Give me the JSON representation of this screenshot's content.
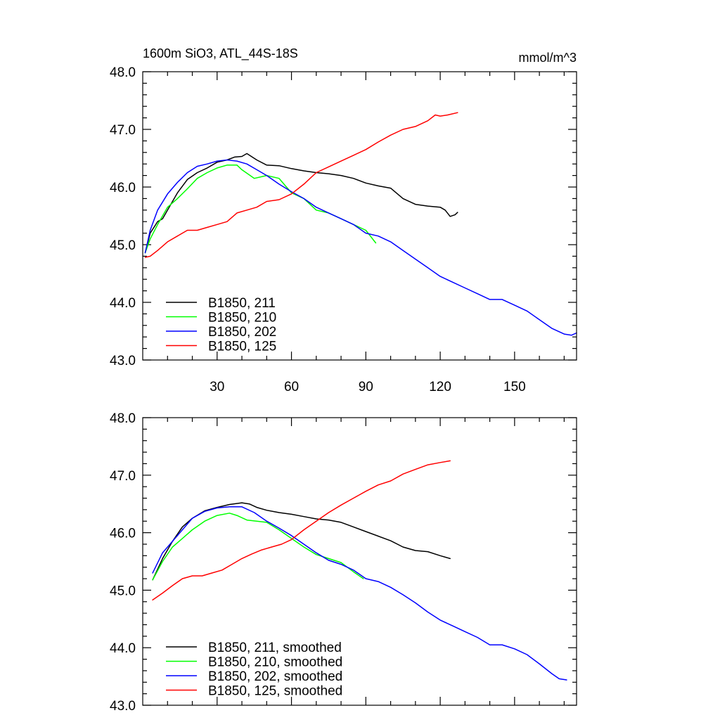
{
  "chart_data": [
    {
      "type": "line",
      "title": "1600m SiO3, ATL_44S-18S",
      "units_label": "mmol/m^3",
      "xlim": [
        0,
        175
      ],
      "ylim": [
        43.0,
        48.0
      ],
      "x_ticks": [
        30,
        60,
        90,
        120,
        150
      ],
      "x_tick_labels": [
        "30",
        "60",
        "90",
        "120",
        "150"
      ],
      "y_ticks": [
        43,
        44,
        45,
        46,
        47,
        48
      ],
      "y_tick_labels": [
        "43.0",
        "44.0",
        "45.0",
        "46.0",
        "47.0",
        "48.0"
      ],
      "legend_position": "bottom-left",
      "series": [
        {
          "name": "B1850, 211",
          "color": "#000000",
          "x": [
            1,
            3,
            6,
            8,
            10,
            14,
            18,
            22,
            26,
            30,
            34,
            37,
            40,
            42,
            46,
            50,
            55,
            60,
            65,
            70,
            75,
            80,
            85,
            90,
            95,
            100,
            105,
            110,
            115,
            120,
            122,
            124,
            126,
            127
          ],
          "y": [
            44.86,
            45.2,
            45.4,
            45.45,
            45.6,
            45.9,
            46.13,
            46.25,
            46.33,
            46.43,
            46.47,
            46.52,
            46.53,
            46.58,
            46.47,
            46.38,
            46.37,
            46.32,
            46.28,
            46.25,
            46.23,
            46.2,
            46.15,
            46.07,
            46.02,
            45.98,
            45.8,
            45.7,
            45.67,
            45.65,
            45.6,
            45.49,
            45.52,
            45.56
          ]
        },
        {
          "name": "B1850, 210",
          "color": "#00ff00",
          "x": [
            1,
            3,
            6,
            10,
            14,
            18,
            22,
            26,
            30,
            34,
            38,
            40,
            45,
            50,
            55,
            60,
            65,
            70,
            75,
            80,
            85,
            90,
            94
          ],
          "y": [
            44.86,
            45.1,
            45.35,
            45.65,
            45.8,
            45.97,
            46.15,
            46.25,
            46.33,
            46.38,
            46.38,
            46.3,
            46.15,
            46.2,
            46.15,
            45.9,
            45.8,
            45.6,
            45.55,
            45.45,
            45.35,
            45.25,
            45.03
          ]
        },
        {
          "name": "B1850, 202",
          "color": "#0000ff",
          "x": [
            1,
            3,
            6,
            10,
            14,
            18,
            22,
            26,
            30,
            34,
            38,
            42,
            46,
            50,
            55,
            60,
            65,
            70,
            75,
            80,
            85,
            90,
            95,
            100,
            105,
            110,
            115,
            120,
            125,
            130,
            135,
            140,
            145,
            150,
            155,
            160,
            165,
            170,
            173,
            175
          ],
          "y": [
            44.86,
            45.25,
            45.6,
            45.88,
            46.08,
            46.25,
            46.36,
            46.4,
            46.45,
            46.47,
            46.45,
            46.4,
            46.3,
            46.2,
            46.05,
            45.92,
            45.8,
            45.65,
            45.55,
            45.45,
            45.35,
            45.2,
            45.15,
            45.05,
            44.9,
            44.75,
            44.6,
            44.45,
            44.35,
            44.25,
            44.15,
            44.05,
            44.05,
            43.95,
            43.85,
            43.7,
            43.55,
            43.45,
            43.43,
            43.47
          ]
        },
        {
          "name": "B1850, 125",
          "color": "#ff0000",
          "x": [
            1,
            3,
            6,
            10,
            14,
            18,
            22,
            26,
            30,
            34,
            38,
            42,
            46,
            50,
            55,
            60,
            65,
            70,
            75,
            80,
            85,
            90,
            95,
            100,
            105,
            110,
            115,
            118,
            120,
            123,
            127
          ],
          "y": [
            44.78,
            44.8,
            44.9,
            45.05,
            45.15,
            45.25,
            45.25,
            45.3,
            45.35,
            45.4,
            45.55,
            45.6,
            45.65,
            45.75,
            45.78,
            45.88,
            46.05,
            46.25,
            46.35,
            46.45,
            46.55,
            46.65,
            46.78,
            46.9,
            47.0,
            47.05,
            47.15,
            47.25,
            47.23,
            47.25,
            47.29
          ]
        }
      ]
    },
    {
      "type": "line",
      "xlim": [
        0,
        175
      ],
      "ylim": [
        43.0,
        48.0
      ],
      "x_ticks": [
        30,
        60,
        90,
        120,
        150
      ],
      "y_ticks": [
        43,
        44,
        45,
        46,
        47,
        48
      ],
      "y_tick_labels": [
        "43.0",
        "44.0",
        "45.0",
        "46.0",
        "47.0",
        "48.0"
      ],
      "legend_position": "bottom-left",
      "series": [
        {
          "name": "B1850, 211, smoothed",
          "color": "#000000",
          "x": [
            4,
            8,
            12,
            16,
            20,
            25,
            30,
            35,
            40,
            43,
            46,
            50,
            55,
            60,
            65,
            70,
            75,
            80,
            85,
            90,
            95,
            100,
            105,
            110,
            115,
            120,
            124
          ],
          "y": [
            45.18,
            45.55,
            45.85,
            46.1,
            46.25,
            46.38,
            46.44,
            46.49,
            46.52,
            46.5,
            46.44,
            46.39,
            46.35,
            46.32,
            46.28,
            46.24,
            46.22,
            46.18,
            46.1,
            46.02,
            45.94,
            45.86,
            45.75,
            45.69,
            45.67,
            45.6,
            45.55
          ]
        },
        {
          "name": "B1850, 210, smoothed",
          "color": "#00ff00",
          "x": [
            4,
            8,
            12,
            16,
            20,
            25,
            30,
            35,
            38,
            42,
            46,
            50,
            55,
            60,
            65,
            70,
            75,
            80,
            85,
            89
          ],
          "y": [
            45.18,
            45.5,
            45.75,
            45.9,
            46.05,
            46.2,
            46.3,
            46.34,
            46.3,
            46.22,
            46.2,
            46.18,
            46.05,
            45.9,
            45.75,
            45.62,
            45.55,
            45.48,
            45.32,
            45.2
          ]
        },
        {
          "name": "B1850, 202, smoothed",
          "color": "#0000ff",
          "x": [
            4,
            8,
            12,
            16,
            20,
            25,
            30,
            35,
            40,
            45,
            50,
            55,
            60,
            65,
            70,
            75,
            80,
            85,
            90,
            95,
            100,
            105,
            110,
            115,
            120,
            125,
            130,
            135,
            140,
            145,
            150,
            155,
            160,
            165,
            168,
            171
          ],
          "y": [
            45.3,
            45.65,
            45.85,
            46.05,
            46.25,
            46.37,
            46.43,
            46.45,
            46.45,
            46.35,
            46.2,
            46.08,
            45.95,
            45.8,
            45.65,
            45.52,
            45.45,
            45.35,
            45.2,
            45.15,
            45.05,
            44.92,
            44.78,
            44.62,
            44.48,
            44.38,
            44.28,
            44.18,
            44.05,
            44.05,
            43.98,
            43.88,
            43.72,
            43.55,
            43.46,
            43.44
          ]
        },
        {
          "name": "B1850, 125, smoothed",
          "color": "#ff0000",
          "x": [
            4,
            8,
            12,
            16,
            20,
            24,
            28,
            32,
            36,
            40,
            44,
            48,
            52,
            56,
            60,
            65,
            70,
            75,
            80,
            85,
            90,
            95,
            100,
            105,
            110,
            115,
            120,
            124
          ],
          "y": [
            44.83,
            44.95,
            45.08,
            45.2,
            45.25,
            45.25,
            45.3,
            45.35,
            45.45,
            45.55,
            45.63,
            45.7,
            45.75,
            45.8,
            45.88,
            46.05,
            46.2,
            46.35,
            46.48,
            46.6,
            46.72,
            46.83,
            46.9,
            47.02,
            47.1,
            47.18,
            47.22,
            47.25
          ]
        }
      ]
    }
  ]
}
